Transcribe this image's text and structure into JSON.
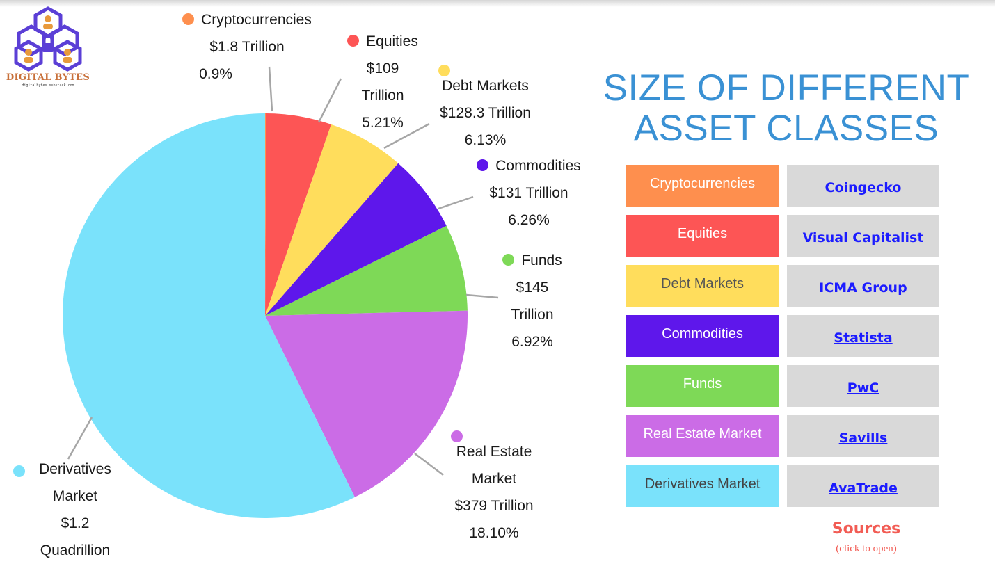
{
  "logo": {
    "brand": "DIGITAL BYTES",
    "url": "digitalbytes.substack.com"
  },
  "title": {
    "line1": "SIZE OF DIFFERENT",
    "line2": "ASSET CLASSES"
  },
  "chart_data": {
    "type": "pie",
    "slices": [
      {
        "name": "Cryptocurrencies",
        "value_text": "$1.8 Trillion",
        "value_trillion": 1.8,
        "percent": 0.9,
        "percent_label": "0.9%",
        "color": "#fe8f4e"
      },
      {
        "name": "Equities",
        "value_text": "$109 Trillion",
        "value_trillion": 109,
        "percent": 5.21,
        "percent_label": "5.21%",
        "color": "#fd5555"
      },
      {
        "name": "Debt Markets",
        "value_text": "$128.3 Trillion",
        "value_trillion": 128.3,
        "percent": 6.13,
        "percent_label": "6.13%",
        "color": "#ffdd5c"
      },
      {
        "name": "Commodities",
        "value_text": "$131 Trillion",
        "value_trillion": 131,
        "percent": 6.26,
        "percent_label": "6.26%",
        "color": "#5e17eb"
      },
      {
        "name": "Funds",
        "value_text": "$145 Trillion",
        "value_trillion": 145,
        "percent": 6.92,
        "percent_label": "6.92%",
        "color": "#7ed957"
      },
      {
        "name": "Real Estate Market",
        "value_text": "$379 Trillion",
        "value_trillion": 379,
        "percent": 18.1,
        "percent_label": "18.10%",
        "color": "#cb6ce6"
      },
      {
        "name": "Derivatives Market",
        "value_text": "$1.2 Quadrillion",
        "value_trillion": 1200,
        "percent": 56.48,
        "percent_label": "",
        "color": "#7ae2fb"
      }
    ]
  },
  "pie_labels": {
    "crypto": {
      "lines": [
        "Cryptocurrencies",
        "$1.8 Trillion",
        "0.9%"
      ]
    },
    "equities": {
      "lines": [
        "Equities",
        "$109",
        "Trillion",
        "5.21%"
      ]
    },
    "debt": {
      "lines": [
        "Debt Markets",
        "$128.3 Trillion",
        "6.13%"
      ]
    },
    "commodities": {
      "lines": [
        "Commodities",
        "$131 Trillion",
        "6.26%"
      ]
    },
    "funds": {
      "lines": [
        "Funds",
        "$145",
        "Trillion",
        "6.92%"
      ]
    },
    "realestate": {
      "lines": [
        "Real Estate",
        "Market",
        "$379 Trillion",
        "18.10%"
      ]
    },
    "derivatives": {
      "lines": [
        "Derivatives",
        "Market",
        "$1.2",
        "Quadrillion"
      ]
    }
  },
  "categories": [
    {
      "label": "Cryptocurrencies",
      "color": "#fe8f4e",
      "source": "Coingecko"
    },
    {
      "label": "Equities",
      "color": "#fd5555",
      "source": "Visual Capitalist"
    },
    {
      "label": "Debt Markets",
      "color": "#ffdd5c",
      "source": "ICMA Group"
    },
    {
      "label": "Commodities",
      "color": "#5e17eb",
      "source": "Statista"
    },
    {
      "label": "Funds",
      "color": "#7ed957",
      "source": "PwC"
    },
    {
      "label": "Real Estate Market",
      "color": "#cb6ce6",
      "source": "Savills"
    },
    {
      "label": "Derivatives Market",
      "color": "#7ae2fb",
      "source": "AvaTrade"
    }
  ],
  "sources": {
    "title": "Sources",
    "hint": "(click to open)"
  }
}
